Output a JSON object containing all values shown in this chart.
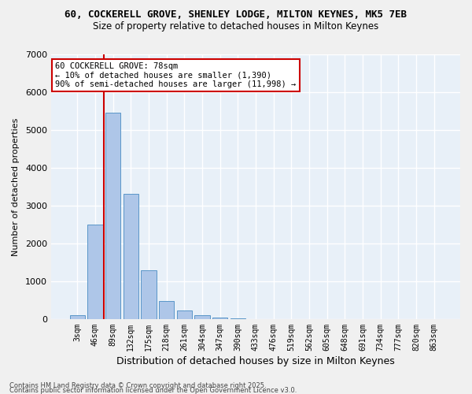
{
  "title_line1": "60, COCKERELL GROVE, SHENLEY LODGE, MILTON KEYNES, MK5 7EB",
  "title_line2": "Size of property relative to detached houses in Milton Keynes",
  "xlabel": "Distribution of detached houses by size in Milton Keynes",
  "ylabel": "Number of detached properties",
  "categories": [
    "3sqm",
    "46sqm",
    "89sqm",
    "132sqm",
    "175sqm",
    "218sqm",
    "261sqm",
    "304sqm",
    "347sqm",
    "390sqm",
    "433sqm",
    "476sqm",
    "519sqm",
    "562sqm",
    "605sqm",
    "648sqm",
    "691sqm",
    "734sqm",
    "777sqm",
    "820sqm",
    "863sqm"
  ],
  "values": [
    100,
    2500,
    5450,
    3320,
    1290,
    480,
    220,
    100,
    50,
    30,
    0,
    0,
    0,
    0,
    0,
    0,
    0,
    0,
    0,
    0,
    0
  ],
  "bar_color": "#aec6e8",
  "bar_edgecolor": "#5a96c8",
  "vline_x": 1.5,
  "vline_color": "#cc0000",
  "annotation_text": "60 COCKERELL GROVE: 78sqm\n← 10% of detached houses are smaller (1,390)\n90% of semi-detached houses are larger (11,998) →",
  "annotation_box_color": "#cc0000",
  "background_color": "#e8f0f8",
  "grid_color": "#ffffff",
  "ylim": [
    0,
    7000
  ],
  "yticks": [
    0,
    1000,
    2000,
    3000,
    4000,
    5000,
    6000,
    7000
  ],
  "footer_line1": "Contains HM Land Registry data © Crown copyright and database right 2025.",
  "footer_line2": "Contains public sector information licensed under the Open Government Licence v3.0."
}
